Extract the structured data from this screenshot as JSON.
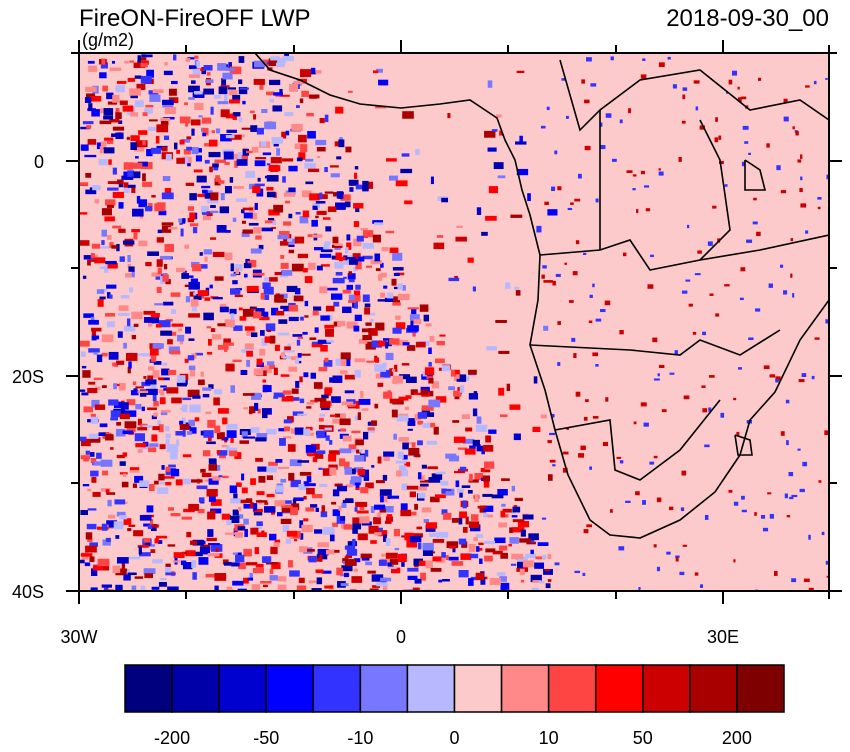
{
  "header": {
    "title": "FireON-FireOFF LWP",
    "units": "(g/m2)",
    "date": "2018-09-30_00"
  },
  "axes": {
    "lat_labels": [
      "0",
      "20S",
      "40S"
    ],
    "lon_labels": [
      "30W",
      "0",
      "30E"
    ]
  },
  "colorbar": {
    "colors": [
      "#00007f",
      "#0000a8",
      "#0000cf",
      "#0000ff",
      "#3333ff",
      "#7777ff",
      "#b8b8ff",
      "#fccaca",
      "#ff8888",
      "#ff4444",
      "#ff0000",
      "#cc0000",
      "#a80000",
      "#7f0000"
    ],
    "labels": [
      -200,
      -50,
      -10,
      0,
      10,
      50,
      200
    ]
  }
}
